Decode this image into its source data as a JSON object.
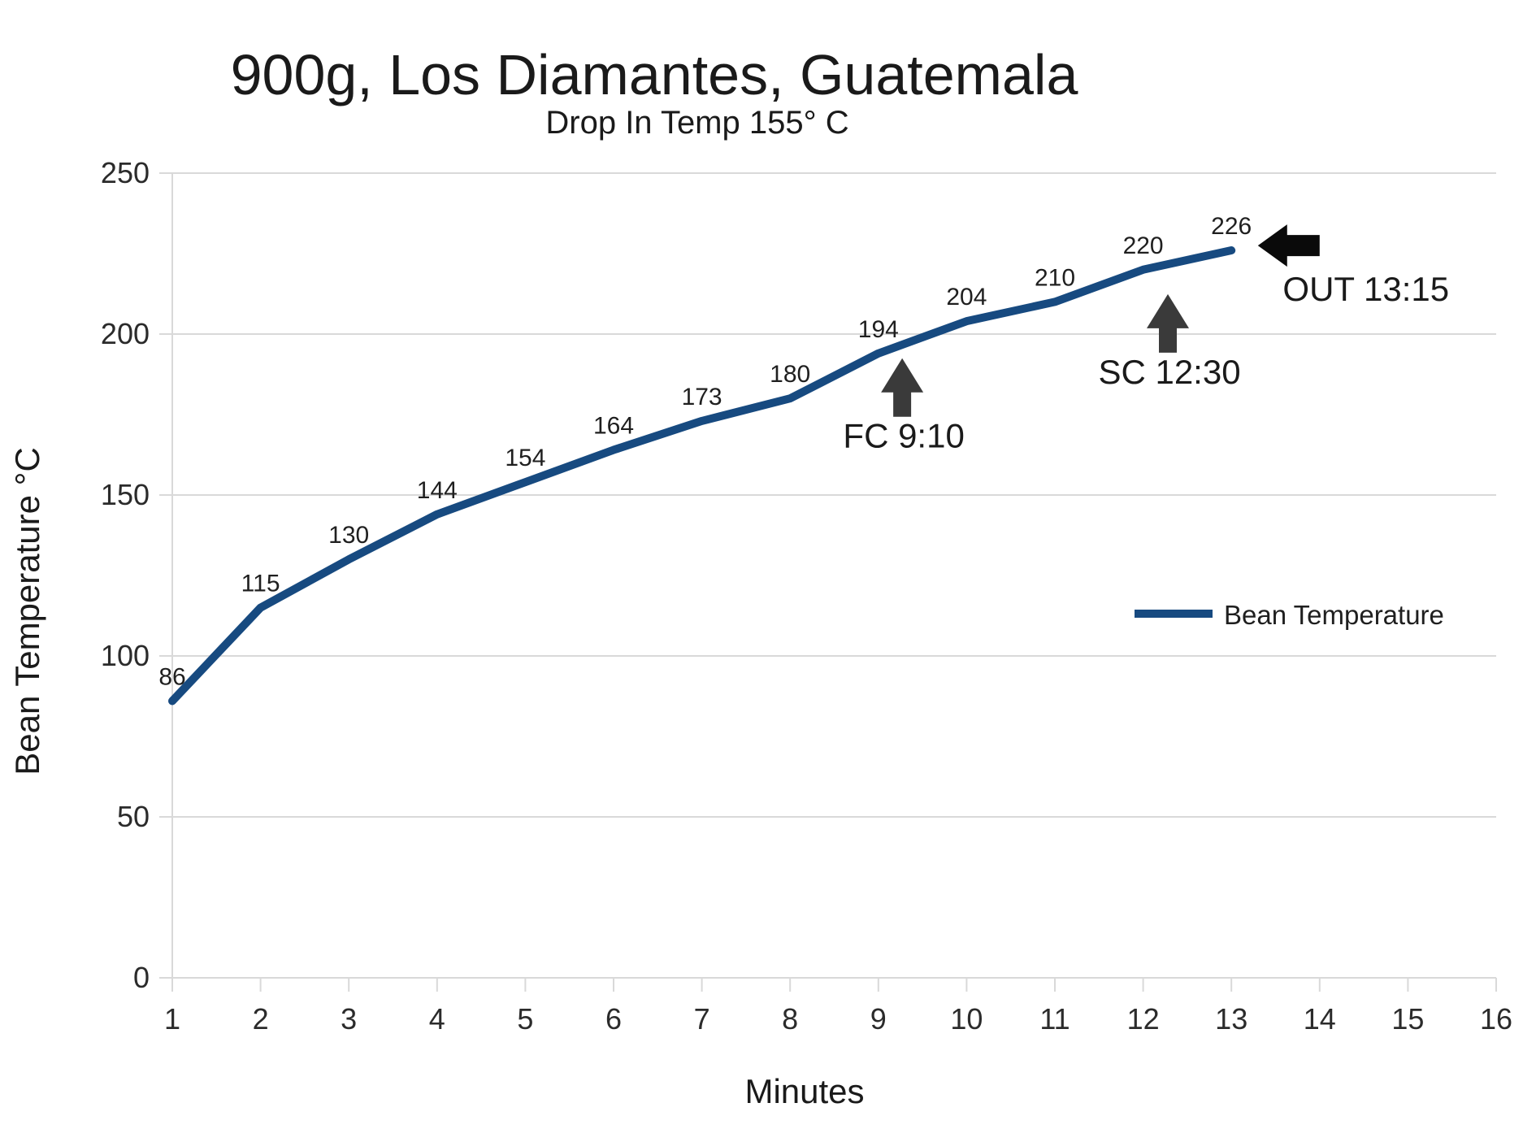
{
  "chart_data": {
    "type": "line",
    "title": "900g, Los Diamantes, Guatemala",
    "subtitle": "Drop In Temp 155° C",
    "xlabel": "Minutes",
    "ylabel": "Bean Temperature °C",
    "xlim": [
      1,
      16
    ],
    "ylim": [
      0,
      250
    ],
    "x_ticks": [
      1,
      2,
      3,
      4,
      5,
      6,
      7,
      8,
      9,
      10,
      11,
      12,
      13,
      14,
      15,
      16
    ],
    "y_ticks": [
      0,
      50,
      100,
      150,
      200,
      250
    ],
    "grid": "horizontal-only",
    "legend_position": "right-middle",
    "series": [
      {
        "name": "Bean Temperature",
        "x": [
          1,
          2,
          3,
          4,
          5,
          6,
          7,
          8,
          9,
          10,
          11,
          12,
          13
        ],
        "values": [
          86,
          115,
          130,
          144,
          154,
          164,
          173,
          180,
          194,
          204,
          210,
          220,
          226
        ],
        "color": "#174A80",
        "point_labels_visible": true
      }
    ],
    "annotations": [
      {
        "label": "FC 9:10",
        "arrow": "up",
        "x": 9.27,
        "y": 192.5
      },
      {
        "label": "SC 12:30",
        "arrow": "up",
        "x": 12.28,
        "y": 212.4
      },
      {
        "label": "OUT 13:15",
        "arrow": "left",
        "x": 13.3,
        "y": 227.5
      }
    ],
    "colors": {
      "line": "#174A80",
      "grid": "#d9d9d9",
      "tick_text": "#2b2b2b",
      "label_text": "#1f1f1f",
      "title_text": "#1a1a1a",
      "arrow_up": "#3a3a3a",
      "arrow_left": "#0a0a0a"
    }
  }
}
